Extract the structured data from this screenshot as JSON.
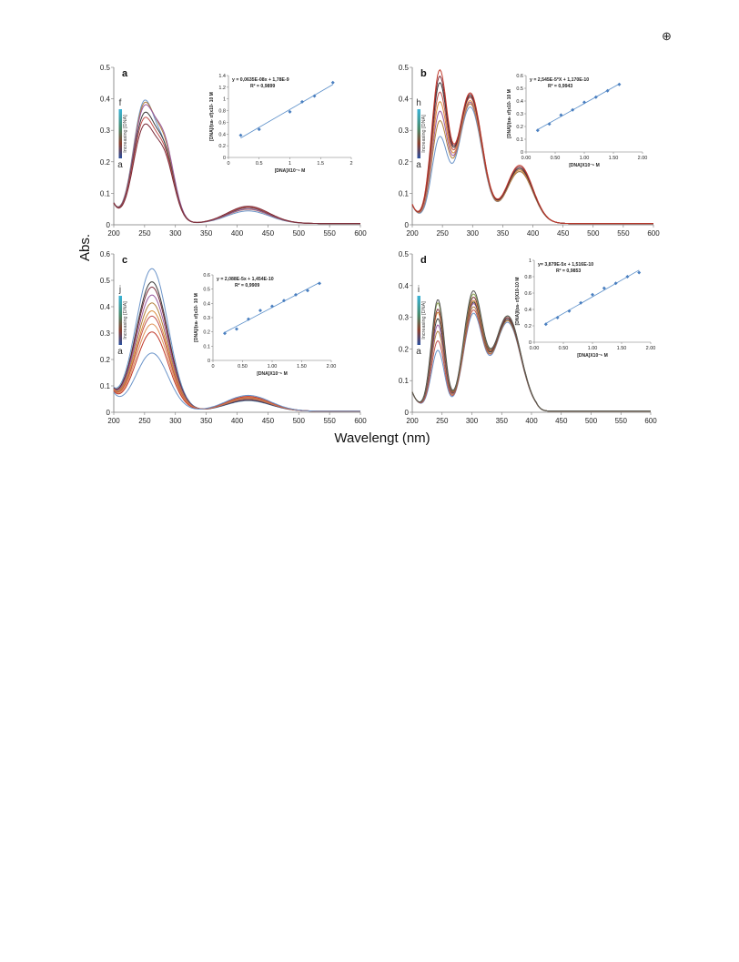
{
  "figure": {
    "ylabel": "Abs.",
    "xlabel": "Wavelengt (nm)",
    "corner_mark": "⊕"
  },
  "chart_data": [
    {
      "panel": "a",
      "type": "line",
      "xlim": [
        200,
        600
      ],
      "ylim": [
        0,
        0.5
      ],
      "xticks": [
        "200",
        "250",
        "300",
        "350",
        "400",
        "450",
        "500",
        "550",
        "600"
      ],
      "yticks": [
        "0",
        "0.1",
        "0.2",
        "0.3",
        "0.4",
        "0.5"
      ],
      "first_label": "a",
      "last_label": "f",
      "gradient_text": "Increasing [DNA]",
      "peaks": [
        {
          "c": 248,
          "w": 17
        },
        {
          "c": 282,
          "w": 16
        },
        {
          "c": 418,
          "w": 34
        }
      ],
      "curves": [
        {
          "a": [
            0.365,
            0.21,
            0.04
          ],
          "color": "#6b94c9"
        },
        {
          "a": [
            0.355,
            0.23,
            0.045
          ],
          "color": "#b07f3c"
        },
        {
          "a": [
            0.345,
            0.24,
            0.046
          ],
          "color": "#9a5aa0"
        },
        {
          "a": [
            0.325,
            0.215,
            0.05
          ],
          "color": "#3a3a3a"
        },
        {
          "a": [
            0.31,
            0.205,
            0.052
          ],
          "color": "#c0504d"
        },
        {
          "a": [
            0.29,
            0.195,
            0.055
          ],
          "color": "#7b2c3a"
        }
      ],
      "inset": {
        "ylim": [
          0,
          1.4
        ],
        "xlim": [
          0,
          2
        ],
        "xticks": [
          "0",
          "0.5",
          "1",
          "1.5",
          "2"
        ],
        "yticks": [
          "0",
          "0.2",
          "0.4",
          "0.6",
          "0.8",
          "1",
          "1.2",
          "1.4"
        ],
        "x": [
          0.2,
          0.5,
          1.0,
          1.2,
          1.4,
          1.7
        ],
        "y": [
          0.38,
          0.48,
          0.78,
          0.95,
          1.05,
          1.28
        ],
        "eq": "y = 0,0635E-08x + 1,78E-9",
        "r2": "R² = 0,9899",
        "ylabel": "[DNA]/(εa- εf)x10- 10 M",
        "xlabel": "[DNA]X10⁻⁵ M"
      }
    },
    {
      "panel": "b",
      "type": "line",
      "xlim": [
        200,
        600
      ],
      "ylim": [
        0,
        0.5
      ],
      "xticks": [
        "200",
        "250",
        "300",
        "350",
        "400",
        "450",
        "500",
        "550",
        "600"
      ],
      "yticks": [
        "0",
        "0.1",
        "0.2",
        "0.3",
        "0.4",
        "0.5"
      ],
      "first_label": "a",
      "last_label": "h",
      "gradient_text": "Increasing [DNA]",
      "peaks": [
        {
          "c": 245,
          "w": 13
        },
        {
          "c": 296,
          "w": 20
        },
        {
          "c": 378,
          "w": 22
        }
      ],
      "curves": [
        {
          "a": [
            0.26,
            0.37,
            0.165
          ],
          "color": "#6b94c9"
        },
        {
          "a": [
            0.31,
            0.38,
            0.165
          ],
          "color": "#b07f3c"
        },
        {
          "a": [
            0.34,
            0.385,
            0.17
          ],
          "color": "#9a5aa0"
        },
        {
          "a": [
            0.37,
            0.39,
            0.17
          ],
          "color": "#d98b3a"
        },
        {
          "a": [
            0.4,
            0.4,
            0.175
          ],
          "color": "#c0504d"
        },
        {
          "a": [
            0.43,
            0.405,
            0.175
          ],
          "color": "#3a3a3a"
        },
        {
          "a": [
            0.45,
            0.41,
            0.18
          ],
          "color": "#7b2c3a"
        },
        {
          "a": [
            0.47,
            0.415,
            0.185
          ],
          "color": "#c0392b"
        }
      ],
      "inset": {
        "ylim": [
          0,
          0.6
        ],
        "xlim": [
          0,
          2
        ],
        "xticks": [
          "0.00",
          "0.50",
          "1.00",
          "1.50",
          "2.00"
        ],
        "yticks": [
          "0",
          "0.1",
          "0.2",
          "0.3",
          "0.4",
          "0.5",
          "0.6"
        ],
        "x": [
          0.2,
          0.4,
          0.6,
          0.8,
          1.0,
          1.2,
          1.4,
          1.6
        ],
        "y": [
          0.17,
          0.22,
          0.29,
          0.33,
          0.39,
          0.43,
          0.48,
          0.53
        ],
        "eq": "y = 2,545E-5*X + 1,170E-10",
        "r2": "R² = 0,9943",
        "ylabel": "[DNA]/(εa- εf)x10- 10 M",
        "xlabel": "[DNA]X10⁻⁵ M"
      }
    },
    {
      "panel": "c",
      "type": "line",
      "xlim": [
        200,
        600
      ],
      "ylim": [
        0,
        0.6
      ],
      "xticks": [
        "200",
        "250",
        "300",
        "350",
        "400",
        "450",
        "500",
        "550",
        "600"
      ],
      "yticks": [
        "0",
        "0.1",
        "0.2",
        "0.3",
        "0.4",
        "0.5",
        "0.6"
      ],
      "first_label": "a",
      "last_label": "j",
      "gradient_text": "Increasing [DNA]",
      "peaks": [
        {
          "c": 262,
          "w": 26
        },
        {
          "c": 418,
          "w": 36
        }
      ],
      "curves": [
        {
          "a": [
            0.54,
            0.04
          ],
          "color": "#6b94c9"
        },
        {
          "a": [
            0.49,
            0.042
          ],
          "color": "#3a3a3a"
        },
        {
          "a": [
            0.47,
            0.045
          ],
          "color": "#7b2c3a"
        },
        {
          "a": [
            0.44,
            0.046
          ],
          "color": "#9a5aa0"
        },
        {
          "a": [
            0.41,
            0.048
          ],
          "color": "#b07f3c"
        },
        {
          "a": [
            0.38,
            0.05
          ],
          "color": "#d98b3a"
        },
        {
          "a": [
            0.36,
            0.052
          ],
          "color": "#c0504d"
        },
        {
          "a": [
            0.33,
            0.054
          ],
          "color": "#e0935a"
        },
        {
          "a": [
            0.3,
            0.056
          ],
          "color": "#c0392b"
        },
        {
          "a": [
            0.22,
            0.06
          ],
          "color": "#6b94c9"
        }
      ],
      "inset": {
        "ylim": [
          0,
          0.6
        ],
        "xlim": [
          0,
          2
        ],
        "xticks": [
          "0",
          "0.50",
          "1.00",
          "1.50",
          "2.00"
        ],
        "yticks": [
          "0",
          "0.1",
          "0.2",
          "0.3",
          "0.4",
          "0.5",
          "0.6"
        ],
        "x": [
          0.2,
          0.4,
          0.6,
          0.8,
          1.0,
          1.2,
          1.4,
          1.6,
          1.8
        ],
        "y": [
          0.19,
          0.22,
          0.29,
          0.35,
          0.38,
          0.42,
          0.46,
          0.49,
          0.54
        ],
        "eq": "y = 2,088E-5x + 1,454E-10",
        "r2": "R² = 0,9909",
        "ylabel": "[DNA]/(εa- εf)x10- 10 M",
        "xlabel": "[DNA]X10⁻⁵ M"
      }
    },
    {
      "panel": "d",
      "type": "line",
      "xlim": [
        200,
        600
      ],
      "ylim": [
        0,
        0.5
      ],
      "xticks": [
        "200",
        "250",
        "300",
        "350",
        "400",
        "450",
        "500",
        "550",
        "600"
      ],
      "yticks": [
        "0",
        "0.1",
        "0.2",
        "0.3",
        "0.4",
        "0.5"
      ],
      "first_label": "a",
      "last_label": "i",
      "gradient_text": "Increasing [DNA]",
      "cutoff": 428,
      "peaks": [
        {
          "c": 243,
          "w": 11
        },
        {
          "c": 302,
          "w": 16
        },
        {
          "c": 360,
          "w": 22
        }
      ],
      "curves": [
        {
          "a": [
            0.19,
            0.3,
            0.28
          ],
          "color": "#6b94c9"
        },
        {
          "a": [
            0.22,
            0.31,
            0.285
          ],
          "color": "#c0504d"
        },
        {
          "a": [
            0.25,
            0.32,
            0.285
          ],
          "color": "#b07f3c"
        },
        {
          "a": [
            0.27,
            0.33,
            0.29
          ],
          "color": "#9a5aa0"
        },
        {
          "a": [
            0.29,
            0.335,
            0.29
          ],
          "color": "#3a3a3a"
        },
        {
          "a": [
            0.31,
            0.34,
            0.295
          ],
          "color": "#d98b3a"
        },
        {
          "a": [
            0.32,
            0.35,
            0.295
          ],
          "color": "#7b2c3a"
        },
        {
          "a": [
            0.34,
            0.36,
            0.3
          ],
          "color": "#8aa04f"
        },
        {
          "a": [
            0.35,
            0.37,
            0.3
          ],
          "color": "#555555"
        }
      ],
      "inset": {
        "ylim": [
          0,
          1
        ],
        "xlim": [
          0,
          2
        ],
        "xticks": [
          "0.00",
          "0.50",
          "1.00",
          "1.50",
          "2.00"
        ],
        "yticks": [
          "0",
          "0.2",
          "0.4",
          "0.6",
          "0.8",
          "1"
        ],
        "x": [
          0.2,
          0.4,
          0.6,
          0.8,
          1.0,
          1.2,
          1.4,
          1.6,
          1.8
        ],
        "y": [
          0.22,
          0.3,
          0.38,
          0.48,
          0.58,
          0.66,
          0.72,
          0.8,
          0.85
        ],
        "eq": "y= 3,879E-5x + 1,516E-10",
        "r2": "R² = 0,9853",
        "ylabel": "[DNA]/(εa- εf)X10-10 M",
        "xlabel": "[DNA]X10⁻⁵ M"
      }
    }
  ]
}
